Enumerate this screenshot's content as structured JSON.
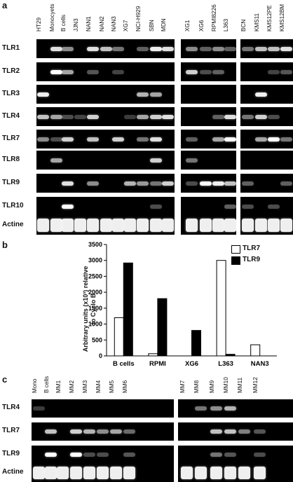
{
  "panel_a": {
    "letter": "a",
    "lanes": [
      "HT29",
      "Monocyets",
      "B cells",
      "JJN3",
      "NAN1",
      "NAN2",
      "NAN3",
      "XG7",
      "NCI-H929",
      "SBN",
      "MDN",
      "XG1",
      "XG6",
      "RPMI8226",
      "L363",
      "BCN",
      "KMS11",
      "KMS12PE",
      "KMS12BM"
    ],
    "rows": [
      "TLR1",
      "TLR2",
      "TLR3",
      "TLR4",
      "TLR7",
      "TLR8",
      "TLR9",
      "TLR10",
      "Actine"
    ]
  },
  "panel_b": {
    "letter": "b",
    "chart_data": {
      "type": "bar",
      "categories": [
        "B cells",
        "RPMI",
        "XG6",
        "L363",
        "NAN3"
      ],
      "series": [
        {
          "name": "TLR7",
          "values": [
            1200,
            70,
            0,
            3000,
            350
          ],
          "color": "#ffffff"
        },
        {
          "name": "TLR9",
          "values": [
            2920,
            1800,
            800,
            50,
            0
          ],
          "color": "#000000"
        }
      ],
      "ylabel": "Arbitrary units (x10³) relative to Cyclo B",
      "yticks": [
        0,
        500,
        1000,
        1500,
        2000,
        2500,
        3000,
        3500
      ],
      "ylim": [
        0,
        3500
      ],
      "legend_position": "top-right"
    }
  },
  "panel_c": {
    "letter": "c",
    "lanes": [
      "Mono",
      "B cells",
      "MM1",
      "MM2",
      "MM3",
      "MM4",
      "MM5",
      "MM6",
      "MM7",
      "MM8",
      "MM9",
      "MM10",
      "MM11",
      "MM12"
    ],
    "rows": [
      "TLR4",
      "TLR7",
      "TLR9",
      "Actine"
    ]
  }
}
